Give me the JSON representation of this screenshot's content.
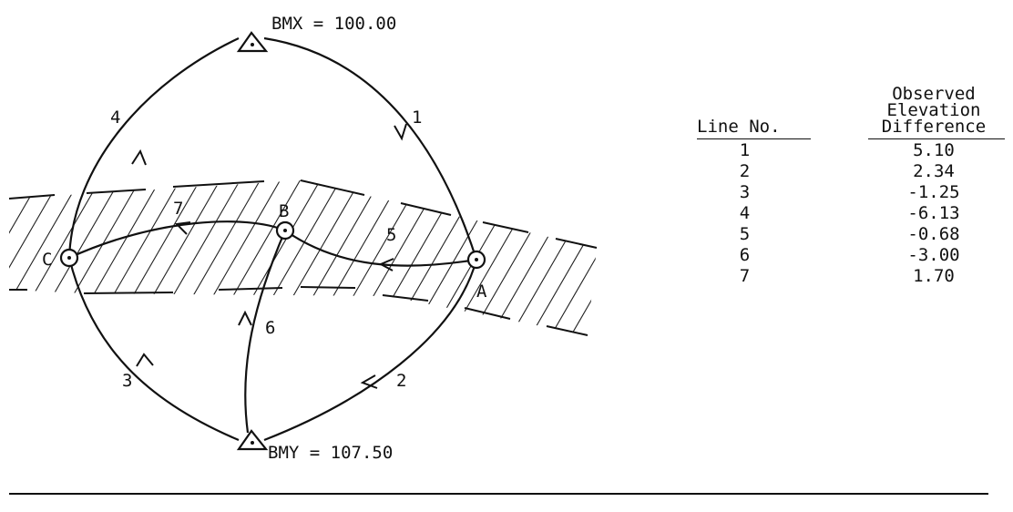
{
  "stations": {
    "bmx_label": "BMX = 100.00",
    "bmy_label": "BMY = 107.50",
    "a_label": "A",
    "b_label": "B",
    "c_label": "C"
  },
  "lines": [
    {
      "id": "1",
      "from": "BMX",
      "to": "A"
    },
    {
      "id": "2",
      "from": "A",
      "to": "BMY"
    },
    {
      "id": "3",
      "from": "BMY",
      "to": "C"
    },
    {
      "id": "4",
      "from": "C",
      "to": "BMX"
    },
    {
      "id": "5",
      "from": "A",
      "to": "B"
    },
    {
      "id": "6",
      "from": "BMY",
      "to": "B"
    },
    {
      "id": "7",
      "from": "B",
      "to": "C"
    }
  ],
  "table": {
    "col1_header": "Line No.",
    "col2_header_lines": [
      "Observed",
      "Elevation",
      "Difference"
    ],
    "rows": [
      {
        "line": "1",
        "diff": "5.10"
      },
      {
        "line": "2",
        "diff": "2.34"
      },
      {
        "line": "3",
        "diff": "-1.25"
      },
      {
        "line": "4",
        "diff": "-6.13"
      },
      {
        "line": "5",
        "diff": "-0.68"
      },
      {
        "line": "6",
        "diff": "-3.00"
      },
      {
        "line": "7",
        "diff": "1.70"
      }
    ]
  }
}
